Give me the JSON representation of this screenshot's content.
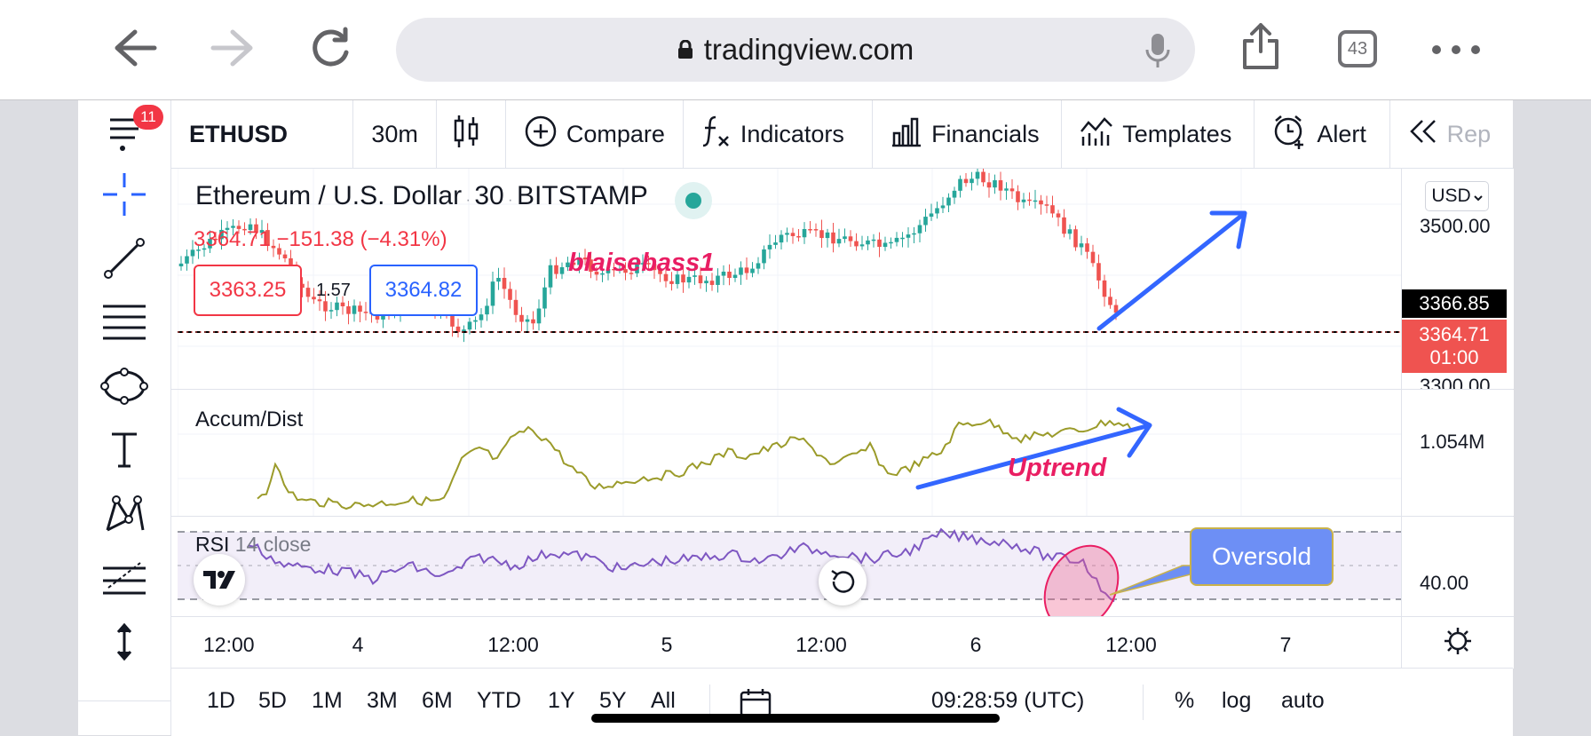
{
  "browser": {
    "url": "tradingview.com",
    "tab_count": "43"
  },
  "sidebar": {
    "menu_badge": "11"
  },
  "toolbar": {
    "symbol": "ETHUSD",
    "interval": "30m",
    "compare": "Compare",
    "indicators": "Indicators",
    "financials": "Financials",
    "templates": "Templates",
    "alert": "Alert",
    "replay": "Rep"
  },
  "legend": {
    "symbol_name": "Ethereum / U.S. Dollar",
    "interval": "30",
    "exchange": "BITSTAMP",
    "last_price": "3364.71",
    "change": "−151.38 (−4.31%)",
    "bid": "3363.25",
    "spread": "1.57",
    "ask": "3364.82"
  },
  "annotations": {
    "username": "blaisebass1",
    "uptrend": "Uptrend",
    "oversold": "Oversold"
  },
  "panes": {
    "accum_dist_label": "Accum/Dist",
    "rsi_label": "RSI",
    "rsi_params": "14 close"
  },
  "price_scale": {
    "currency": "USD",
    "p3500": "3500.00",
    "crosshair_price": "3366.85",
    "last_price": "3364.71",
    "countdown": "01:00",
    "p3300": "3300.00",
    "ad_value": "1.054M",
    "rsi_value": "40.00"
  },
  "time_axis": [
    "12:00",
    "4",
    "12:00",
    "5",
    "12:00",
    "6",
    "12:00",
    "7"
  ],
  "bottom": {
    "ranges": [
      "1D",
      "5D",
      "1M",
      "3M",
      "6M",
      "YTD",
      "1Y",
      "5Y",
      "All"
    ],
    "clock": "09:28:59 (UTC)",
    "percent": "%",
    "log": "log",
    "auto": "auto"
  },
  "colors": {
    "up": "#26a69a",
    "down": "#ef5350",
    "ad_line": "#9b9b2a",
    "rsi_line": "#7e57c2",
    "annotation_blue": "#3366ff",
    "annotation_pink": "#e91e63",
    "oversold_bg": "#6d8ff5"
  }
}
